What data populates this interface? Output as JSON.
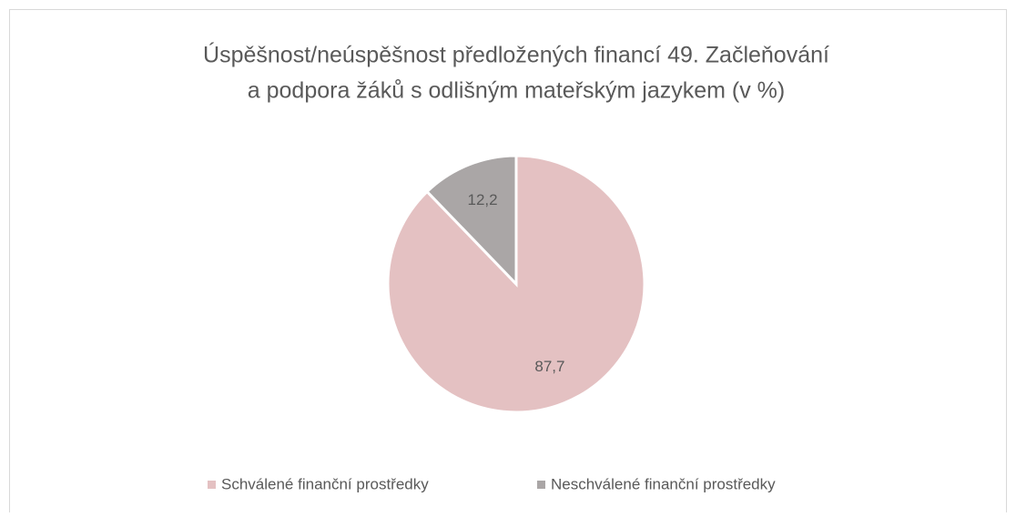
{
  "chart_data": {
    "type": "pie",
    "title": [
      "Úspěšnost/neúspěšnost předložených financí 49. Začleňování",
      "a podpora žáků s odlišným mateřským jazykem (v %)"
    ],
    "categories": [
      "Schválené finanční prostředky",
      "Neschválené finanční prostředky"
    ],
    "values": [
      87.7,
      12.2
    ],
    "value_labels": [
      "87,7",
      "12,2"
    ],
    "colors": [
      "#e4c1c2",
      "#aaa6a6"
    ],
    "legend": "bottom"
  }
}
